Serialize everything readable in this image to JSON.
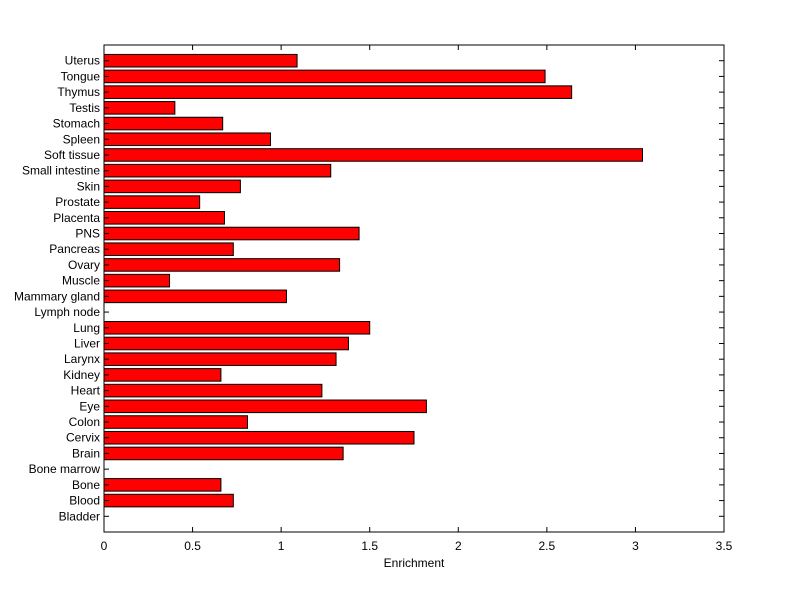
{
  "chart_data": {
    "type": "bar",
    "orientation": "horizontal",
    "title": "",
    "xlabel": "Enrichment",
    "ylabel": "",
    "xlim": [
      0,
      3.5
    ],
    "xticks": [
      "0",
      "0.5",
      "1",
      "1.5",
      "2",
      "2.5",
      "3",
      "3.5"
    ],
    "grid": false,
    "bar_color": "#ff0000",
    "categories": [
      "Bladder",
      "Blood",
      "Bone",
      "Bone marrow",
      "Brain",
      "Cervix",
      "Colon",
      "Eye",
      "Heart",
      "Kidney",
      "Larynx",
      "Liver",
      "Lung",
      "Lymph node",
      "Mammary gland",
      "Muscle",
      "Ovary",
      "Pancreas",
      "PNS",
      "Placenta",
      "Prostate",
      "Skin",
      "Small intestine",
      "Soft tissue",
      "Spleen",
      "Stomach",
      "Testis",
      "Thymus",
      "Tongue",
      "Uterus"
    ],
    "values": [
      0,
      0.73,
      0.66,
      0,
      1.35,
      1.75,
      0.81,
      1.82,
      1.23,
      0.66,
      1.31,
      1.38,
      1.5,
      0,
      1.03,
      0.37,
      1.33,
      0.73,
      1.44,
      0.68,
      0.54,
      0.77,
      1.28,
      3.04,
      0.94,
      0.67,
      0.4,
      2.64,
      2.49,
      1.09
    ]
  }
}
